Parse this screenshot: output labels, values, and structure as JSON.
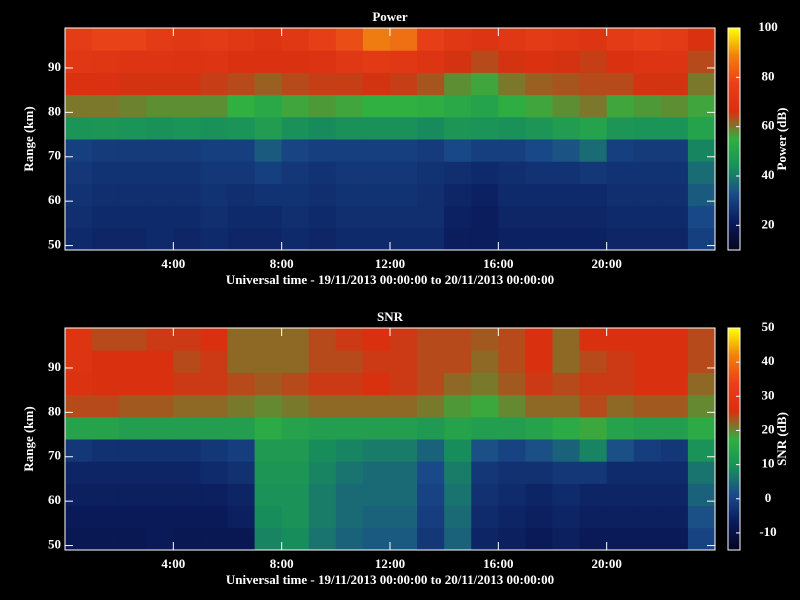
{
  "chart_data": [
    {
      "type": "heatmap",
      "title": "Power",
      "xlabel": "Universal time - 19/11/2013 00:00:00 to 20/11/2013 00:00:00",
      "ylabel": "Range (km)",
      "zlabel": "Power (dB)",
      "xbins": [
        0,
        1,
        2,
        3,
        4,
        5,
        6,
        7,
        8,
        9,
        10,
        11,
        12,
        13,
        14,
        15,
        16,
        17,
        18,
        19,
        20,
        21,
        22,
        23,
        24
      ],
      "ybins": [
        49,
        54,
        59,
        64,
        69,
        74,
        79,
        84,
        89,
        94,
        99
      ],
      "values": [
        [
          25,
          24,
          24,
          25,
          24,
          25,
          24,
          24,
          25,
          24,
          25,
          25,
          25,
          25,
          22,
          22,
          23,
          23,
          23,
          23,
          24,
          24,
          24,
          30
        ],
        [
          26,
          25,
          25,
          25,
          25,
          26,
          25,
          25,
          26,
          25,
          26,
          26,
          26,
          26,
          23,
          22,
          24,
          24,
          24,
          24,
          25,
          25,
          25,
          32
        ],
        [
          27,
          26,
          26,
          26,
          26,
          27,
          26,
          27,
          27,
          26,
          27,
          27,
          27,
          26,
          24,
          23,
          25,
          25,
          25,
          25,
          26,
          26,
          26,
          35
        ],
        [
          28,
          27,
          27,
          27,
          27,
          28,
          28,
          30,
          28,
          27,
          28,
          28,
          28,
          27,
          26,
          25,
          26,
          27,
          27,
          28,
          27,
          27,
          27,
          38
        ],
        [
          30,
          29,
          29,
          29,
          29,
          30,
          30,
          35,
          31,
          30,
          30,
          30,
          30,
          29,
          32,
          30,
          30,
          32,
          34,
          38,
          30,
          29,
          29,
          42
        ],
        [
          45,
          46,
          45,
          44,
          45,
          44,
          45,
          48,
          44,
          43,
          44,
          44,
          44,
          43,
          46,
          45,
          44,
          46,
          48,
          50,
          46,
          45,
          45,
          50
        ],
        [
          60,
          60,
          59,
          58,
          58,
          58,
          55,
          52,
          56,
          57,
          56,
          55,
          55,
          54,
          52,
          50,
          54,
          56,
          58,
          60,
          56,
          57,
          58,
          56
        ],
        [
          68,
          67,
          66,
          66,
          66,
          65,
          64,
          62,
          64,
          65,
          65,
          66,
          65,
          63,
          58,
          56,
          60,
          62,
          63,
          64,
          64,
          66,
          66,
          60
        ],
        [
          72,
          71,
          70,
          70,
          69,
          70,
          68,
          67,
          68,
          69,
          72,
          73,
          72,
          70,
          66,
          64,
          66,
          68,
          66,
          65,
          68,
          70,
          70,
          64
        ],
        [
          75,
          78,
          78,
          74,
          72,
          74,
          72,
          70,
          72,
          76,
          80,
          88,
          86,
          76,
          72,
          70,
          72,
          74,
          72,
          70,
          74,
          76,
          74,
          68
        ]
      ],
      "xlim": [
        0,
        24
      ],
      "xticks": [
        {
          "value": 4,
          "label": "4:00"
        },
        {
          "value": 8,
          "label": "8:00"
        },
        {
          "value": 12,
          "label": "12:00"
        },
        {
          "value": 16,
          "label": "16:00"
        },
        {
          "value": 20,
          "label": "20:00"
        }
      ],
      "ylim": [
        49,
        99
      ],
      "yticks": [
        50,
        60,
        70,
        80,
        90
      ],
      "zlim": [
        10,
        100
      ],
      "zticks": [
        20,
        40,
        60,
        80,
        100
      ],
      "colormap": [
        "#050520",
        "#0a1a5a",
        "#1a4a8a",
        "#18905a",
        "#30b040",
        "#d83010",
        "#e84018",
        "#f08010",
        "#ffff00"
      ]
    },
    {
      "type": "heatmap",
      "title": "SNR",
      "xlabel": "Universal time - 19/11/2013 00:00:00 to 20/11/2013 00:00:00",
      "ylabel": "Range (km)",
      "zlabel": "SNR (dB)",
      "xbins": [
        0,
        1,
        2,
        3,
        4,
        5,
        6,
        7,
        8,
        9,
        10,
        11,
        12,
        13,
        14,
        15,
        16,
        17,
        18,
        19,
        20,
        21,
        22,
        23,
        24
      ],
      "ybins": [
        49,
        54,
        59,
        64,
        69,
        74,
        79,
        84,
        89,
        94,
        99
      ],
      "values": [
        [
          -8,
          -8,
          -8,
          -7,
          -8,
          -8,
          -8,
          8,
          9,
          6,
          4,
          3,
          3,
          -2,
          4,
          -5,
          -6,
          -7,
          -6,
          -7,
          -7,
          -7,
          -7,
          0
        ],
        [
          -7,
          -7,
          -7,
          -7,
          -7,
          -7,
          -6,
          9,
          10,
          7,
          5,
          4,
          4,
          -1,
          5,
          -4,
          -5,
          -6,
          -5,
          -6,
          -6,
          -6,
          -6,
          2
        ],
        [
          -6,
          -6,
          -6,
          -6,
          -6,
          -6,
          -5,
          10,
          10,
          7,
          5,
          5,
          5,
          0,
          6,
          -3,
          -4,
          -5,
          -4,
          -5,
          -5,
          -5,
          -5,
          4
        ],
        [
          -5,
          -5,
          -5,
          -5,
          -5,
          -4,
          -3,
          11,
          11,
          8,
          6,
          5,
          5,
          1,
          7,
          -2,
          -3,
          -3,
          -2,
          -2,
          -4,
          -4,
          -4,
          6
        ],
        [
          -2,
          -3,
          -3,
          -3,
          -3,
          -2,
          -1,
          12,
          12,
          9,
          8,
          7,
          7,
          4,
          9,
          2,
          0,
          2,
          4,
          8,
          2,
          -1,
          -2,
          10
        ],
        [
          14,
          14,
          13,
          13,
          13,
          13,
          13,
          16,
          14,
          13,
          13,
          13,
          13,
          12,
          14,
          13,
          13,
          14,
          16,
          18,
          14,
          13,
          13,
          16
        ],
        [
          24,
          24,
          23,
          23,
          22,
          22,
          21,
          20,
          21,
          22,
          22,
          22,
          22,
          21,
          19,
          18,
          20,
          22,
          22,
          24,
          22,
          23,
          23,
          20
        ],
        [
          27,
          26,
          26,
          26,
          25,
          25,
          24,
          23,
          24,
          25,
          25,
          26,
          25,
          24,
          22,
          21,
          23,
          25,
          24,
          25,
          25,
          26,
          26,
          22
        ],
        [
          28,
          26,
          26,
          26,
          24,
          25,
          22,
          22,
          22,
          24,
          24,
          25,
          25,
          24,
          24,
          22,
          24,
          26,
          22,
          24,
          25,
          26,
          26,
          24
        ],
        [
          28,
          24,
          24,
          25,
          25,
          26,
          22,
          22,
          22,
          24,
          25,
          26,
          25,
          24,
          24,
          23,
          24,
          26,
          22,
          26,
          26,
          26,
          26,
          24
        ]
      ],
      "xlim": [
        0,
        24
      ],
      "xticks": [
        {
          "value": 4,
          "label": "4:00"
        },
        {
          "value": 8,
          "label": "8:00"
        },
        {
          "value": 12,
          "label": "12:00"
        },
        {
          "value": 16,
          "label": "16:00"
        },
        {
          "value": 20,
          "label": "20:00"
        }
      ],
      "ylim": [
        49,
        99
      ],
      "yticks": [
        50,
        60,
        70,
        80,
        90
      ],
      "zlim": [
        -15,
        50
      ],
      "zticks": [
        -10,
        0,
        10,
        20,
        30,
        40,
        50
      ],
      "colormap": [
        "#050520",
        "#0a1a5a",
        "#1a4a8a",
        "#18905a",
        "#30b040",
        "#d83010",
        "#e84018",
        "#f08010",
        "#ffff00"
      ]
    }
  ]
}
